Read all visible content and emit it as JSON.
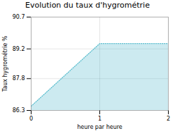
{
  "chart_data": {
    "type": "area",
    "title": "Evolution du taux d'hygrométrie",
    "x_label": "heure par heure",
    "y_label": "Taux hygrométrie %",
    "x": [
      0,
      1,
      2
    ],
    "values": [
      86.5,
      89.45,
      89.45
    ],
    "color": "#55bbcc",
    "line_style": "dotted",
    "xlim": [
      0,
      2
    ],
    "ylim": [
      86.3,
      90.7
    ],
    "xticks": [
      0,
      1,
      2
    ],
    "yticks": [
      86.3,
      87.8,
      89.2,
      90.7
    ],
    "grid": true
  }
}
